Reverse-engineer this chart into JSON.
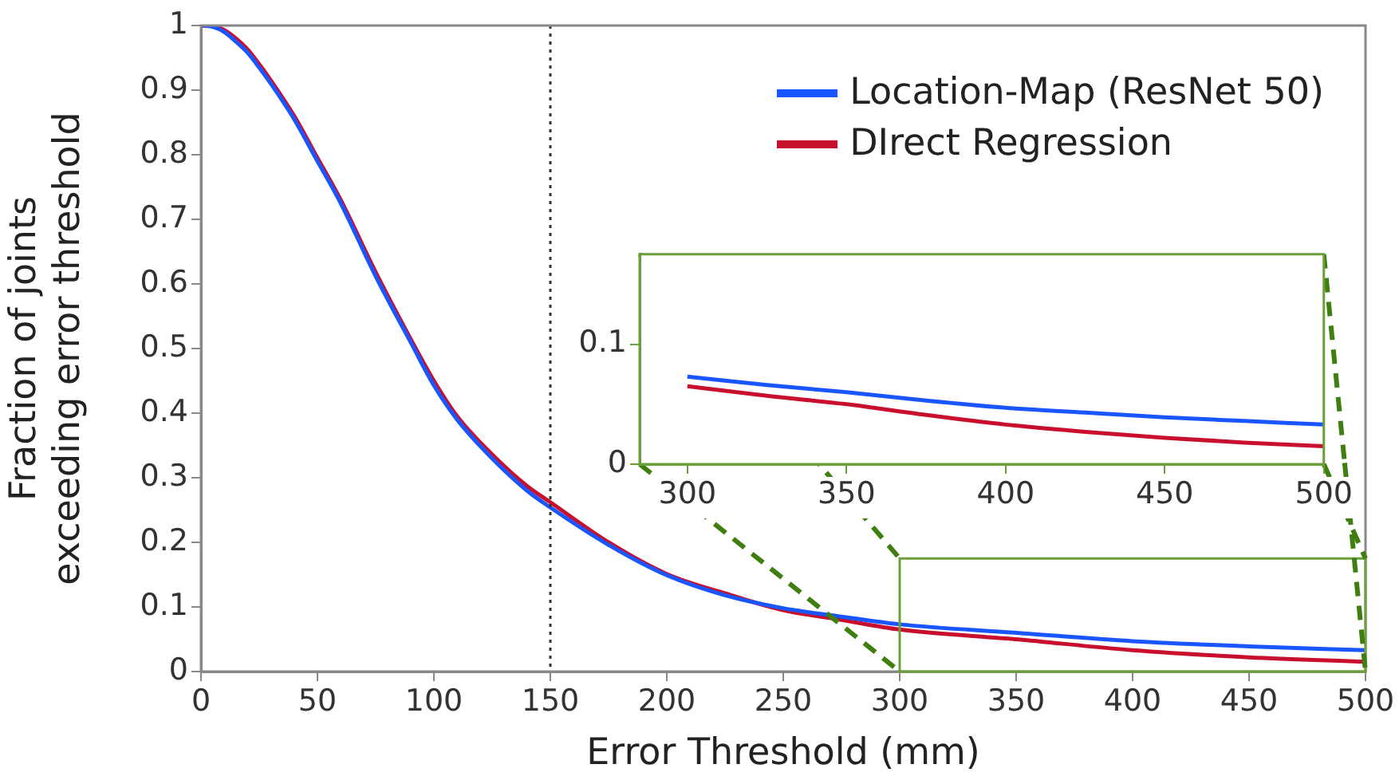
{
  "chart_data": [
    {
      "type": "line",
      "xlabel": "Error Threshold (mm)",
      "ylabel": "Fraction of joints\nexceeding error threshold",
      "xlim": [
        0,
        500
      ],
      "xticks": [
        0,
        50,
        100,
        150,
        200,
        250,
        300,
        350,
        400,
        450,
        500
      ],
      "ylim": [
        0,
        1
      ],
      "yticks": [
        0,
        0.1,
        0.2,
        0.3,
        0.4,
        0.5,
        0.6,
        0.7,
        0.8,
        0.9,
        1
      ],
      "grid": false,
      "legend": "top right",
      "line_style": "solid",
      "marker": "none",
      "x": [
        0,
        5,
        10,
        15,
        20,
        25,
        30,
        40,
        50,
        60,
        75,
        90,
        100,
        110,
        125,
        140,
        150,
        175,
        200,
        225,
        250,
        275,
        300,
        350,
        400,
        450,
        500
      ],
      "ref_lines": [
        {
          "axis": "x",
          "value": 150,
          "color": "#333333",
          "line_style": "dotted"
        }
      ],
      "series": [
        {
          "name": "Location-Map (ResNet 50)",
          "color": "#1a56ff",
          "values": [
            1,
            0.998,
            0.99,
            0.975,
            0.958,
            0.935,
            0.91,
            0.855,
            0.79,
            0.725,
            0.612,
            0.51,
            0.443,
            0.39,
            0.33,
            0.28,
            0.254,
            0.196,
            0.149,
            0.118,
            0.098,
            0.085,
            0.073,
            0.06,
            0.047,
            0.039,
            0.033
          ]
        },
        {
          "name": "DIrect Regression",
          "color": "#c8102e",
          "values": [
            1,
            0.999,
            0.993,
            0.98,
            0.963,
            0.94,
            0.915,
            0.86,
            0.795,
            0.73,
            0.618,
            0.515,
            0.45,
            0.395,
            0.336,
            0.287,
            0.262,
            0.2,
            0.151,
            0.121,
            0.095,
            0.08,
            0.065,
            0.05,
            0.033,
            0.022,
            0.015
          ]
        }
      ]
    },
    {
      "type": "line",
      "xlim": [
        285,
        500
      ],
      "xticks": [
        300,
        350,
        400,
        450,
        500
      ],
      "ylim": [
        0,
        0.175
      ],
      "yticks": [
        0,
        0.1
      ],
      "grid": false,
      "legend": false,
      "line_style": "solid",
      "marker": "none",
      "x": [
        300,
        325,
        350,
        375,
        400,
        425,
        450,
        475,
        500
      ],
      "series": [
        {
          "color": "#1a56ff",
          "values": [
            0.073,
            0.066,
            0.06,
            0.053,
            0.047,
            0.043,
            0.039,
            0.036,
            0.033
          ]
        },
        {
          "color": "#c8102e",
          "values": [
            0.065,
            0.057,
            0.05,
            0.041,
            0.033,
            0.027,
            0.022,
            0.018,
            0.015
          ]
        }
      ]
    }
  ]
}
